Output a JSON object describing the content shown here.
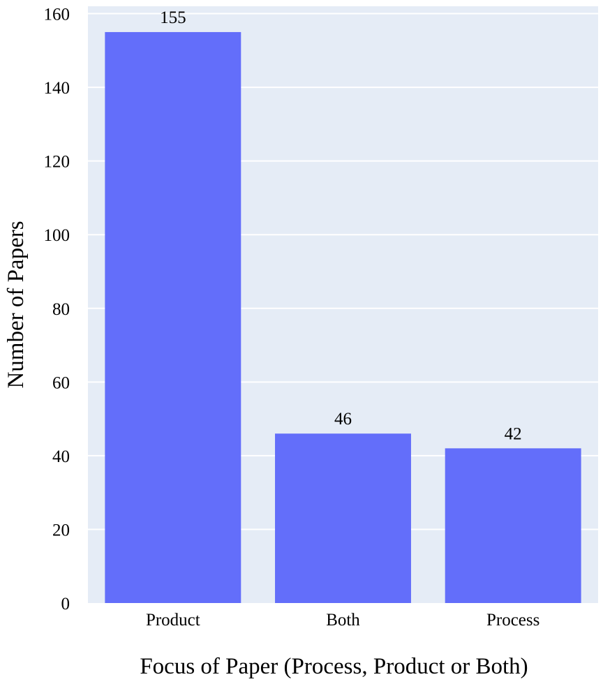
{
  "chart_data": {
    "type": "bar",
    "categories": [
      "Product",
      "Both",
      "Process"
    ],
    "values": [
      155,
      46,
      42
    ],
    "data_labels": [
      "155",
      "46",
      "42"
    ],
    "title": "",
    "xlabel": "Focus of Paper (Process, Product or Both)",
    "ylabel": "Number of Papers",
    "ylim": [
      0,
      162
    ],
    "yticks": [
      0,
      20,
      40,
      60,
      80,
      100,
      120,
      140,
      160
    ],
    "ytick_labels": [
      "0",
      "20",
      "40",
      "60",
      "80",
      "100",
      "120",
      "140",
      "160"
    ],
    "grid": true,
    "legend": "none",
    "colors": {
      "bar": "#636efa",
      "plot_background": "#e5ecf6",
      "gridline": "#ffffff",
      "text": "#000000"
    }
  }
}
